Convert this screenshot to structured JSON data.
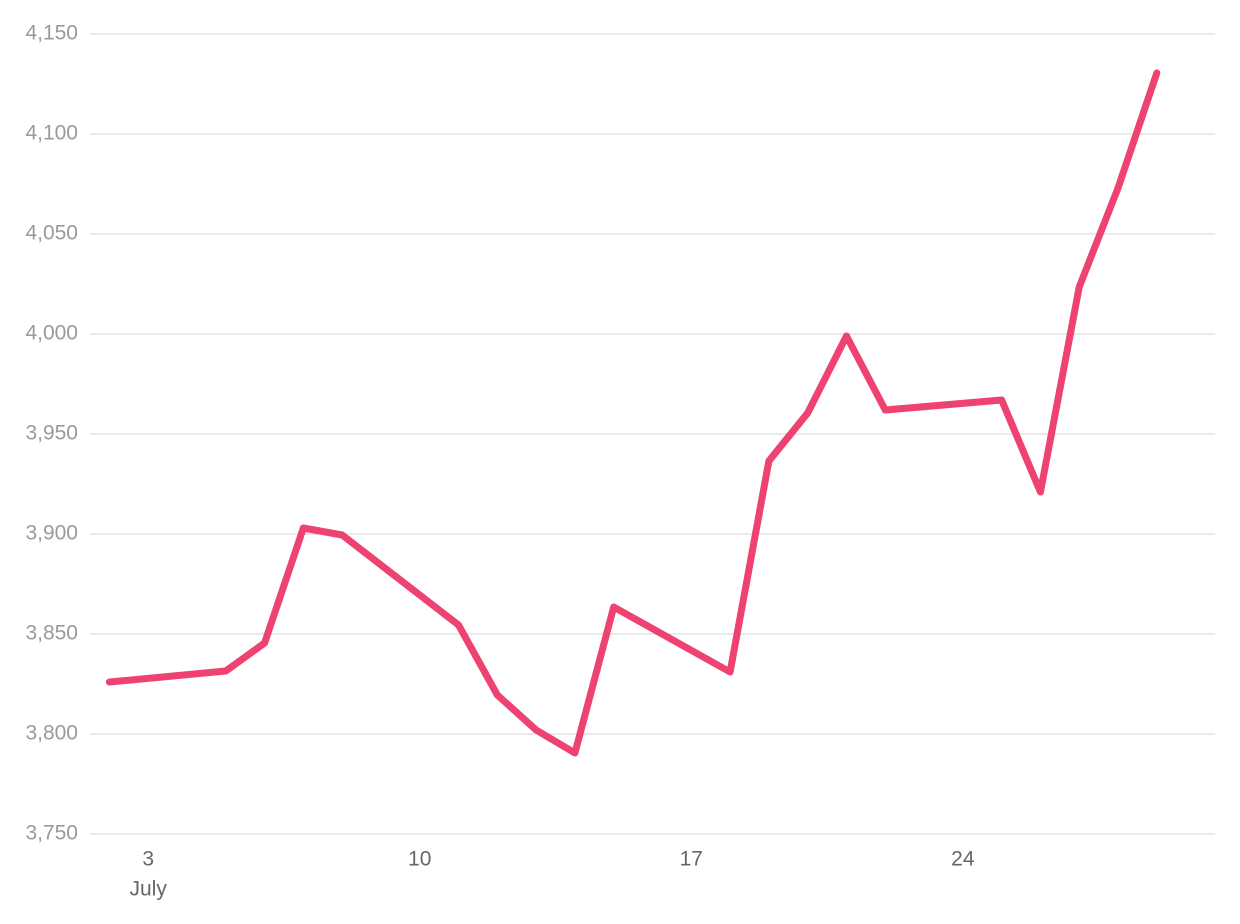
{
  "chart_data": {
    "type": "line",
    "x": [
      2,
      5,
      6,
      7,
      8,
      11,
      12,
      13,
      14,
      15,
      18,
      19,
      20,
      21,
      22,
      25,
      26,
      27,
      28,
      29
    ],
    "series": [
      {
        "color": "#ee4270",
        "values": [
          3826,
          3831.5,
          3845.5,
          3903,
          3899.5,
          3854.5,
          3819.5,
          3802,
          3790.5,
          3863.5,
          3831,
          3936.5,
          3960.5,
          3999,
          3962,
          3967,
          3921,
          4023.5,
          4073,
          4130.5
        ]
      }
    ],
    "xlim": [
      1.5,
      30.5
    ],
    "xticks": [
      3,
      10,
      17,
      24
    ],
    "month": "July",
    "ylim": [
      3750,
      4150
    ],
    "yticks": [
      {
        "value": 3750,
        "label": "3,750"
      },
      {
        "value": 3800,
        "label": "3,800"
      },
      {
        "value": 3850,
        "label": "3,850"
      },
      {
        "value": 3900,
        "label": "3,900"
      },
      {
        "value": 3950,
        "label": "3,950"
      },
      {
        "value": 4000,
        "label": "4,000"
      },
      {
        "value": 4050,
        "label": "4,050"
      },
      {
        "value": 4100,
        "label": "4,100"
      },
      {
        "value": 4150,
        "label": "4,150"
      }
    ],
    "grid": true
  }
}
